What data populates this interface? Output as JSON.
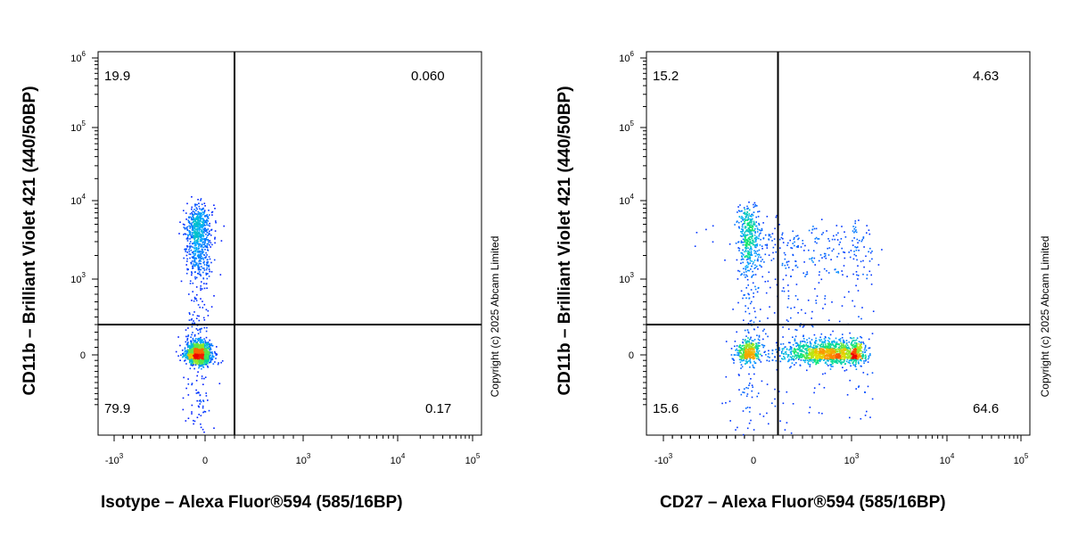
{
  "chart_data": [
    {
      "type": "scatter",
      "subtype": "flow-cytometry-density-plot",
      "xlabel": "Isotype – Alexa Fluor®594 (585/16BP)",
      "ylabel": "CD11b – Brilliant Violet 421  (440/50BP)",
      "xscale": "biexponential",
      "yscale": "biexponential",
      "xticks": [
        {
          "base": "-10",
          "exp": "3",
          "value": -1000
        },
        {
          "base": "0",
          "exp": "",
          "value": 0
        },
        {
          "base": "10",
          "exp": "3",
          "value": 1000
        },
        {
          "base": "10",
          "exp": "4",
          "value": 10000
        },
        {
          "base": "10",
          "exp": "5",
          "value": 100000
        }
      ],
      "yticks": [
        {
          "base": "0",
          "exp": "",
          "value": 0
        },
        {
          "base": "10",
          "exp": "3",
          "value": 1000
        },
        {
          "base": "10",
          "exp": "4",
          "value": 10000
        },
        {
          "base": "10",
          "exp": "5",
          "value": 100000
        },
        {
          "base": "10",
          "exp": "6",
          "value": 1000000
        }
      ],
      "gate": {
        "x": 300,
        "y": 400
      },
      "quadrants": {
        "upper_left": "19.9",
        "upper_right": "0.060",
        "lower_left": "79.9",
        "lower_right": "0.17"
      },
      "populations": [
        {
          "x": -80,
          "y": 20,
          "sdx": 70,
          "sdy": 85,
          "n": 1300
        },
        {
          "x": -80,
          "y": 3000,
          "sdx": 70,
          "sdy": 2600,
          "n": 900
        }
      ],
      "grid": false,
      "legend": "none"
    },
    {
      "type": "scatter",
      "subtype": "flow-cytometry-density-plot",
      "xlabel": "CD27 – Alexa Fluor®594 (585/16BP)",
      "ylabel": "CD11b – Brilliant Violet 421  (440/50BP)",
      "xscale": "biexponential",
      "yscale": "biexponential",
      "xticks": [
        {
          "base": "-10",
          "exp": "3",
          "value": -1000
        },
        {
          "base": "0",
          "exp": "",
          "value": 0
        },
        {
          "base": "10",
          "exp": "3",
          "value": 1000
        },
        {
          "base": "10",
          "exp": "4",
          "value": 10000
        },
        {
          "base": "10",
          "exp": "5",
          "value": 100000
        }
      ],
      "yticks": [
        {
          "base": "0",
          "exp": "",
          "value": 0
        },
        {
          "base": "10",
          "exp": "3",
          "value": 1000
        },
        {
          "base": "10",
          "exp": "4",
          "value": 10000
        },
        {
          "base": "10",
          "exp": "5",
          "value": 100000
        },
        {
          "base": "10",
          "exp": "6",
          "value": 1000000
        }
      ],
      "gate": {
        "x": 250,
        "y": 400
      },
      "quadrants": {
        "upper_left": "15.2",
        "upper_right": "4.63",
        "lower_left": "15.6",
        "lower_right": "64.6"
      },
      "populations": [
        {
          "x": 800,
          "y": 30,
          "sdx": 260,
          "sdy": 85,
          "n": 1300
        },
        {
          "x": -60,
          "y": 40,
          "sdx": 70,
          "sdy": 85,
          "n": 350
        },
        {
          "x": -60,
          "y": 3000,
          "sdx": 70,
          "sdy": 2500,
          "n": 500
        },
        {
          "x": 600,
          "y": 1500,
          "sdx": 450,
          "sdy": 1800,
          "n": 450
        }
      ],
      "grid": false,
      "legend": "none"
    }
  ],
  "copyright": "Copyright (c) 2025 Abcam Limited",
  "colors": {
    "low": "#0000ff",
    "mid": "#00c8ff",
    "high": "#ff0000",
    "gate": "#000000"
  }
}
